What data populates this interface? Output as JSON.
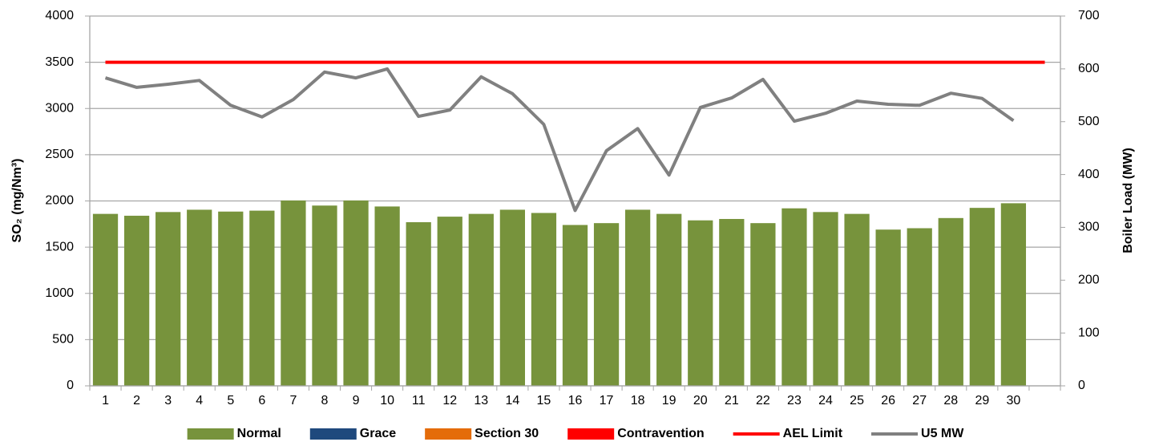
{
  "chart_data": {
    "type": "bar",
    "categories": [
      "1",
      "2",
      "3",
      "4",
      "5",
      "6",
      "7",
      "8",
      "9",
      "10",
      "11",
      "12",
      "13",
      "14",
      "15",
      "16",
      "17",
      "18",
      "19",
      "20",
      "21",
      "22",
      "23",
      "24",
      "25",
      "26",
      "27",
      "28",
      "29",
      "30",
      null
    ],
    "series": [
      {
        "name": "Normal",
        "type": "bar",
        "color": "#77933c",
        "values": [
          1860,
          1840,
          1880,
          1905,
          1885,
          1895,
          2005,
          1950,
          2005,
          1940,
          1770,
          1830,
          1860,
          1905,
          1870,
          1740,
          1760,
          1905,
          1860,
          1790,
          1805,
          1760,
          1920,
          1880,
          1860,
          1690,
          1705,
          1815,
          1925,
          1975,
          null
        ]
      },
      {
        "name": "Grace",
        "type": "bar",
        "color": "#1f497d",
        "values": [
          null,
          null,
          null,
          null,
          null,
          null,
          null,
          null,
          null,
          null,
          null,
          null,
          null,
          null,
          null,
          null,
          null,
          null,
          null,
          null,
          null,
          null,
          null,
          null,
          null,
          null,
          null,
          null,
          null,
          null,
          null
        ]
      },
      {
        "name": "Section 30",
        "type": "bar",
        "color": "#e46c0a",
        "values": [
          null,
          null,
          null,
          null,
          null,
          null,
          null,
          null,
          null,
          null,
          null,
          null,
          null,
          null,
          null,
          null,
          null,
          null,
          null,
          null,
          null,
          null,
          null,
          null,
          null,
          null,
          null,
          null,
          null,
          null,
          null
        ]
      },
      {
        "name": "Contravention",
        "type": "bar",
        "color": "#ff0000",
        "values": [
          null,
          null,
          null,
          null,
          null,
          null,
          null,
          null,
          null,
          null,
          null,
          null,
          null,
          null,
          null,
          null,
          null,
          null,
          null,
          null,
          null,
          null,
          null,
          null,
          null,
          null,
          null,
          null,
          null,
          null,
          null
        ]
      },
      {
        "name": "AEL Limit",
        "type": "line",
        "color": "#ff0000",
        "values": [
          3500,
          3500,
          3500,
          3500,
          3500,
          3500,
          3500,
          3500,
          3500,
          3500,
          3500,
          3500,
          3500,
          3500,
          3500,
          3500,
          3500,
          3500,
          3500,
          3500,
          3500,
          3500,
          3500,
          3500,
          3500,
          3500,
          3500,
          3500,
          3500,
          3500,
          3500
        ]
      },
      {
        "name": "U5 MW",
        "type": "line",
        "color": "#808080",
        "axis": "y2",
        "values": [
          583,
          565,
          571,
          578,
          531,
          509,
          542,
          594,
          583,
          600,
          510,
          522,
          585,
          553,
          495,
          332,
          445,
          487,
          399,
          527,
          545,
          580,
          501,
          516,
          539,
          533,
          531,
          554,
          544,
          502,
          null
        ]
      }
    ],
    "y_label": "SO₂ (mg/Nm³)",
    "y2_label": "Boiler Load (MW)",
    "ylim": [
      0,
      4000
    ],
    "yticks": [
      0,
      500,
      1000,
      1500,
      2000,
      2500,
      3000,
      3500,
      4000
    ],
    "y2lim": [
      0,
      700
    ],
    "y2ticks": [
      0,
      100,
      200,
      300,
      400,
      500,
      600,
      700
    ],
    "grid": true,
    "legend": "bottom"
  }
}
